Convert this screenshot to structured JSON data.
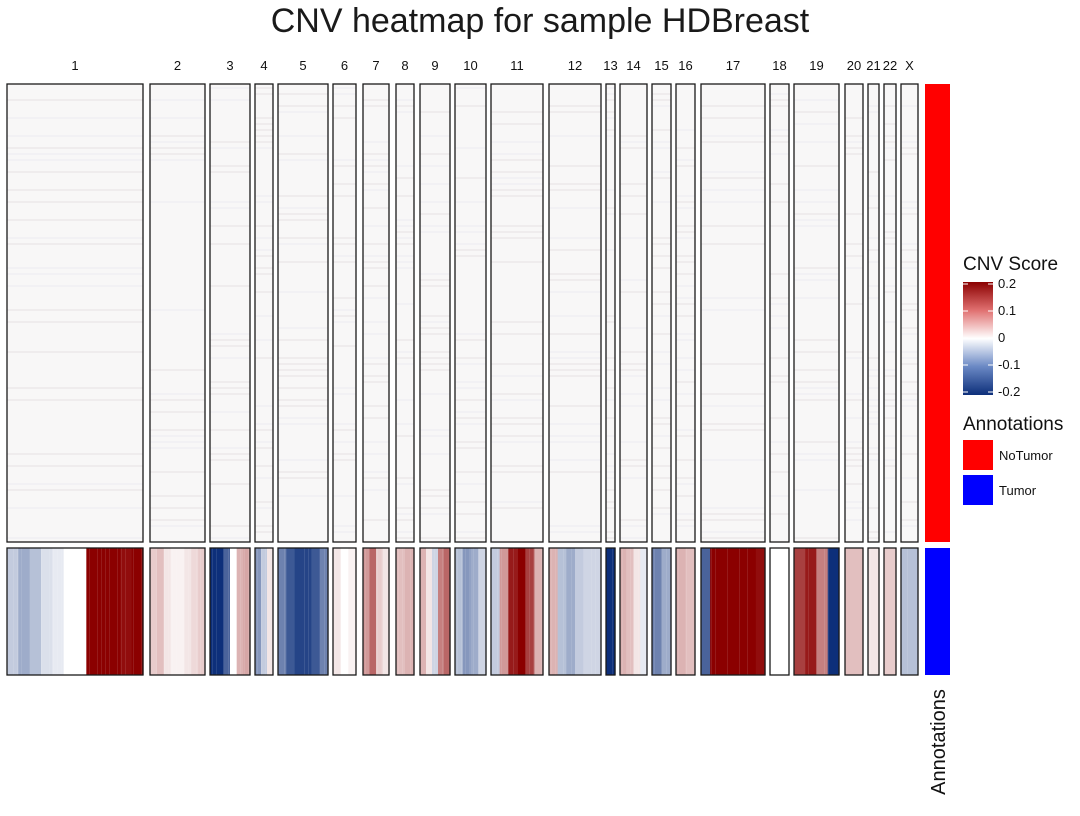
{
  "chart_data": {
    "type": "heatmap",
    "title": "CNV heatmap for sample HDBreast",
    "chromosomes": [
      "1",
      "2",
      "3",
      "4",
      "5",
      "6",
      "7",
      "8",
      "9",
      "10",
      "11",
      "12",
      "13",
      "14",
      "15",
      "16",
      "17",
      "18",
      "19",
      "20",
      "21",
      "22",
      "X"
    ],
    "groups": [
      {
        "name": "NoTumor",
        "color": "#ff0000"
      },
      {
        "name": "Tumor",
        "color": "#0000ff"
      }
    ],
    "tumor_profile": {
      "1": [
        -0.05,
        -0.08,
        -0.06,
        -0.03,
        -0.02,
        0.0,
        0.0,
        0.2,
        0.2,
        0.2,
        0.19,
        0.2
      ],
      "2": [
        0.04,
        0.05,
        0.02,
        0.01,
        0.01,
        0.02,
        0.03,
        0.04
      ],
      "3": [
        -0.2,
        -0.2,
        -0.15,
        0.0,
        0.06,
        0.07
      ],
      "4": [
        -0.1,
        -0.05,
        0.02
      ],
      "5": [
        -0.12,
        -0.16,
        -0.18,
        -0.18,
        -0.16,
        -0.12
      ],
      "6": [
        0.02,
        0.0,
        0.01
      ],
      "7": [
        0.08,
        0.12,
        0.04,
        0.02
      ],
      "8": [
        0.05,
        0.06
      ],
      "9": [
        0.06,
        0.02,
        -0.04,
        0.1,
        0.12
      ],
      "10": [
        -0.06,
        -0.1,
        -0.08,
        -0.04
      ],
      "11": [
        -0.05,
        0.08,
        0.18,
        0.2,
        0.15,
        0.06
      ],
      "12": [
        0.06,
        -0.06,
        -0.08,
        -0.05,
        -0.04,
        -0.04
      ],
      "13": [
        -0.2
      ],
      "14": [
        0.06,
        0.05,
        0.02,
        -0.02
      ],
      "15": [
        -0.12,
        -0.08
      ],
      "16": [
        0.06,
        0.05
      ],
      "17": [
        -0.15,
        0.2,
        0.2,
        0.2,
        0.2,
        0.2,
        0.19
      ],
      "18": [
        0.0
      ],
      "19": [
        0.15,
        0.18,
        0.1,
        -0.2
      ],
      "20": [
        0.05
      ],
      "21": [
        0.02
      ],
      "22": [
        0.04
      ],
      "X": [
        -0.06
      ]
    },
    "legend": {
      "title": "CNV Score",
      "breaks": [
        0.2,
        0.1,
        0,
        -0.1,
        -0.2
      ],
      "break_labels": [
        "0.2",
        "0.1",
        "0",
        "-0.1",
        "-0.2"
      ],
      "range": [
        -0.2,
        0.2
      ],
      "colors": {
        "high": "#8b0000",
        "mid": "#ffffff",
        "low": "#0d2f7a"
      }
    },
    "annotations_legend_title": "Annotations",
    "annotations_axis_label": "Annotations",
    "legend_placement": "right"
  }
}
